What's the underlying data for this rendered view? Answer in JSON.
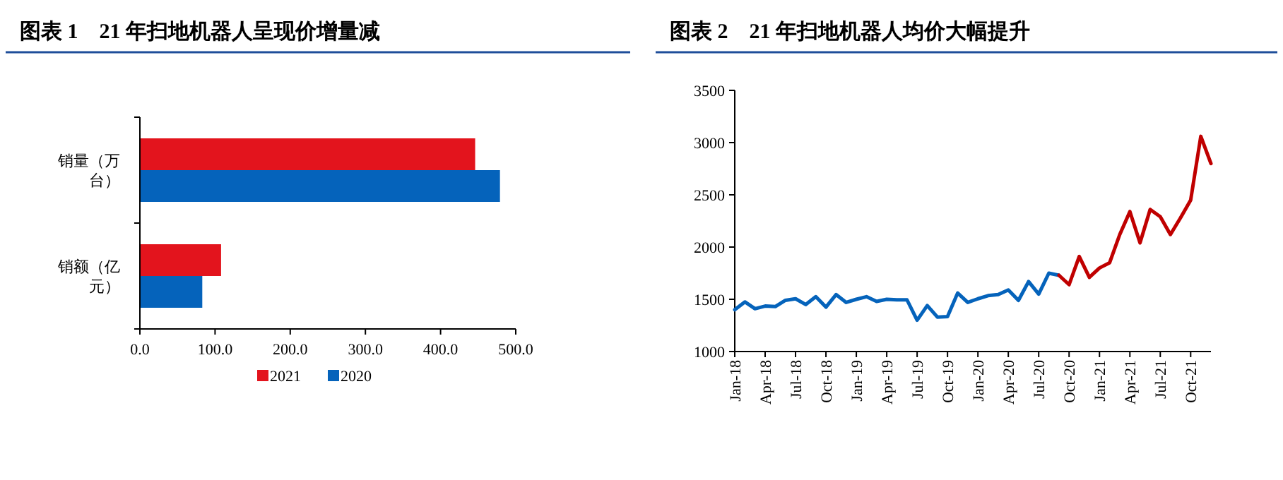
{
  "chart_data": [
    {
      "type": "bar",
      "title": "图表 1　21 年扫地机器人呈现价增量减",
      "orientation": "horizontal",
      "categories": [
        "销量（万台）",
        "销额（亿元）"
      ],
      "series": [
        {
          "name": "2021",
          "color": "#e3141d",
          "values": [
            446,
            108
          ]
        },
        {
          "name": "2020",
          "color": "#0563bb",
          "values": [
            479,
            83
          ]
        }
      ],
      "xlim": [
        0,
        500
      ],
      "xticks": [
        {
          "value": 0,
          "label": "0.0"
        },
        {
          "value": 100,
          "label": "100.0"
        },
        {
          "value": 200,
          "label": "200.0"
        },
        {
          "value": 300,
          "label": "300.0"
        },
        {
          "value": 400,
          "label": "400.0"
        },
        {
          "value": 500,
          "label": "500.0"
        }
      ],
      "legend": "bottom",
      "grid": false
    },
    {
      "type": "line",
      "title": "图表 2　21 年扫地机器人均价大幅提升",
      "x": [
        "2018-01",
        "2018-02",
        "2018-03",
        "2018-04",
        "2018-05",
        "2018-06",
        "2018-07",
        "2018-08",
        "2018-09",
        "2018-10",
        "2018-11",
        "2018-12",
        "2019-01",
        "2019-02",
        "2019-03",
        "2019-04",
        "2019-05",
        "2019-06",
        "2019-07",
        "2019-08",
        "2019-09",
        "2019-10",
        "2019-11",
        "2019-12",
        "2020-01",
        "2020-02",
        "2020-03",
        "2020-04",
        "2020-05",
        "2020-06",
        "2020-07",
        "2020-08",
        "2020-09",
        "2020-10",
        "2020-11",
        "2020-12",
        "2021-01",
        "2021-02",
        "2021-03",
        "2021-04",
        "2021-05",
        "2021-06",
        "2021-07",
        "2021-08",
        "2021-09",
        "2021-10",
        "2021-11",
        "2021-12"
      ],
      "series": [
        {
          "color": "#0563bb",
          "values": [
            1400,
            1475,
            1410,
            1435,
            1430,
            1490,
            1505,
            1450,
            1525,
            1425,
            1545,
            1470,
            1500,
            1525,
            1480,
            1500,
            1495,
            1495,
            1300,
            1440,
            1330,
            1335,
            1560,
            1470,
            1505,
            1535,
            1545,
            1590,
            1490,
            1670,
            1550,
            1750,
            1730,
            null,
            null,
            null,
            null,
            null,
            null,
            null,
            null,
            null,
            null,
            null,
            null,
            null,
            null,
            null
          ]
        },
        {
          "color": "#c00000",
          "values": [
            null,
            null,
            null,
            null,
            null,
            null,
            null,
            null,
            null,
            null,
            null,
            null,
            null,
            null,
            null,
            null,
            null,
            null,
            null,
            null,
            null,
            null,
            null,
            null,
            null,
            null,
            null,
            null,
            null,
            null,
            null,
            null,
            1730,
            1640,
            1910,
            1710,
            1800,
            1850,
            2120,
            2340,
            2040,
            2360,
            2290,
            2120,
            2280,
            2450,
            3060,
            2800
          ]
        }
      ],
      "xlim": [
        "2018-01",
        "2021-12"
      ],
      "xticks": [
        {
          "value": "2018-01",
          "label": "Jan-18"
        },
        {
          "value": "2018-04",
          "label": "Apr-18"
        },
        {
          "value": "2018-07",
          "label": "Jul-18"
        },
        {
          "value": "2018-10",
          "label": "Oct-18"
        },
        {
          "value": "2019-01",
          "label": "Jan-19"
        },
        {
          "value": "2019-04",
          "label": "Apr-19"
        },
        {
          "value": "2019-07",
          "label": "Jul-19"
        },
        {
          "value": "2019-10",
          "label": "Oct-19"
        },
        {
          "value": "2020-01",
          "label": "Jan-20"
        },
        {
          "value": "2020-04",
          "label": "Apr-20"
        },
        {
          "value": "2020-07",
          "label": "Jul-20"
        },
        {
          "value": "2020-10",
          "label": "Oct-20"
        },
        {
          "value": "2021-01",
          "label": "Jan-21"
        },
        {
          "value": "2021-04",
          "label": "Apr-21"
        },
        {
          "value": "2021-07",
          "label": "Jul-21"
        },
        {
          "value": "2021-10",
          "label": "Oct-21"
        }
      ],
      "ylim": [
        1000,
        3500
      ],
      "yticks": [
        1000,
        1500,
        2000,
        2500,
        3000,
        3500
      ],
      "grid": false,
      "marker": "none",
      "line_style": "solid"
    }
  ]
}
